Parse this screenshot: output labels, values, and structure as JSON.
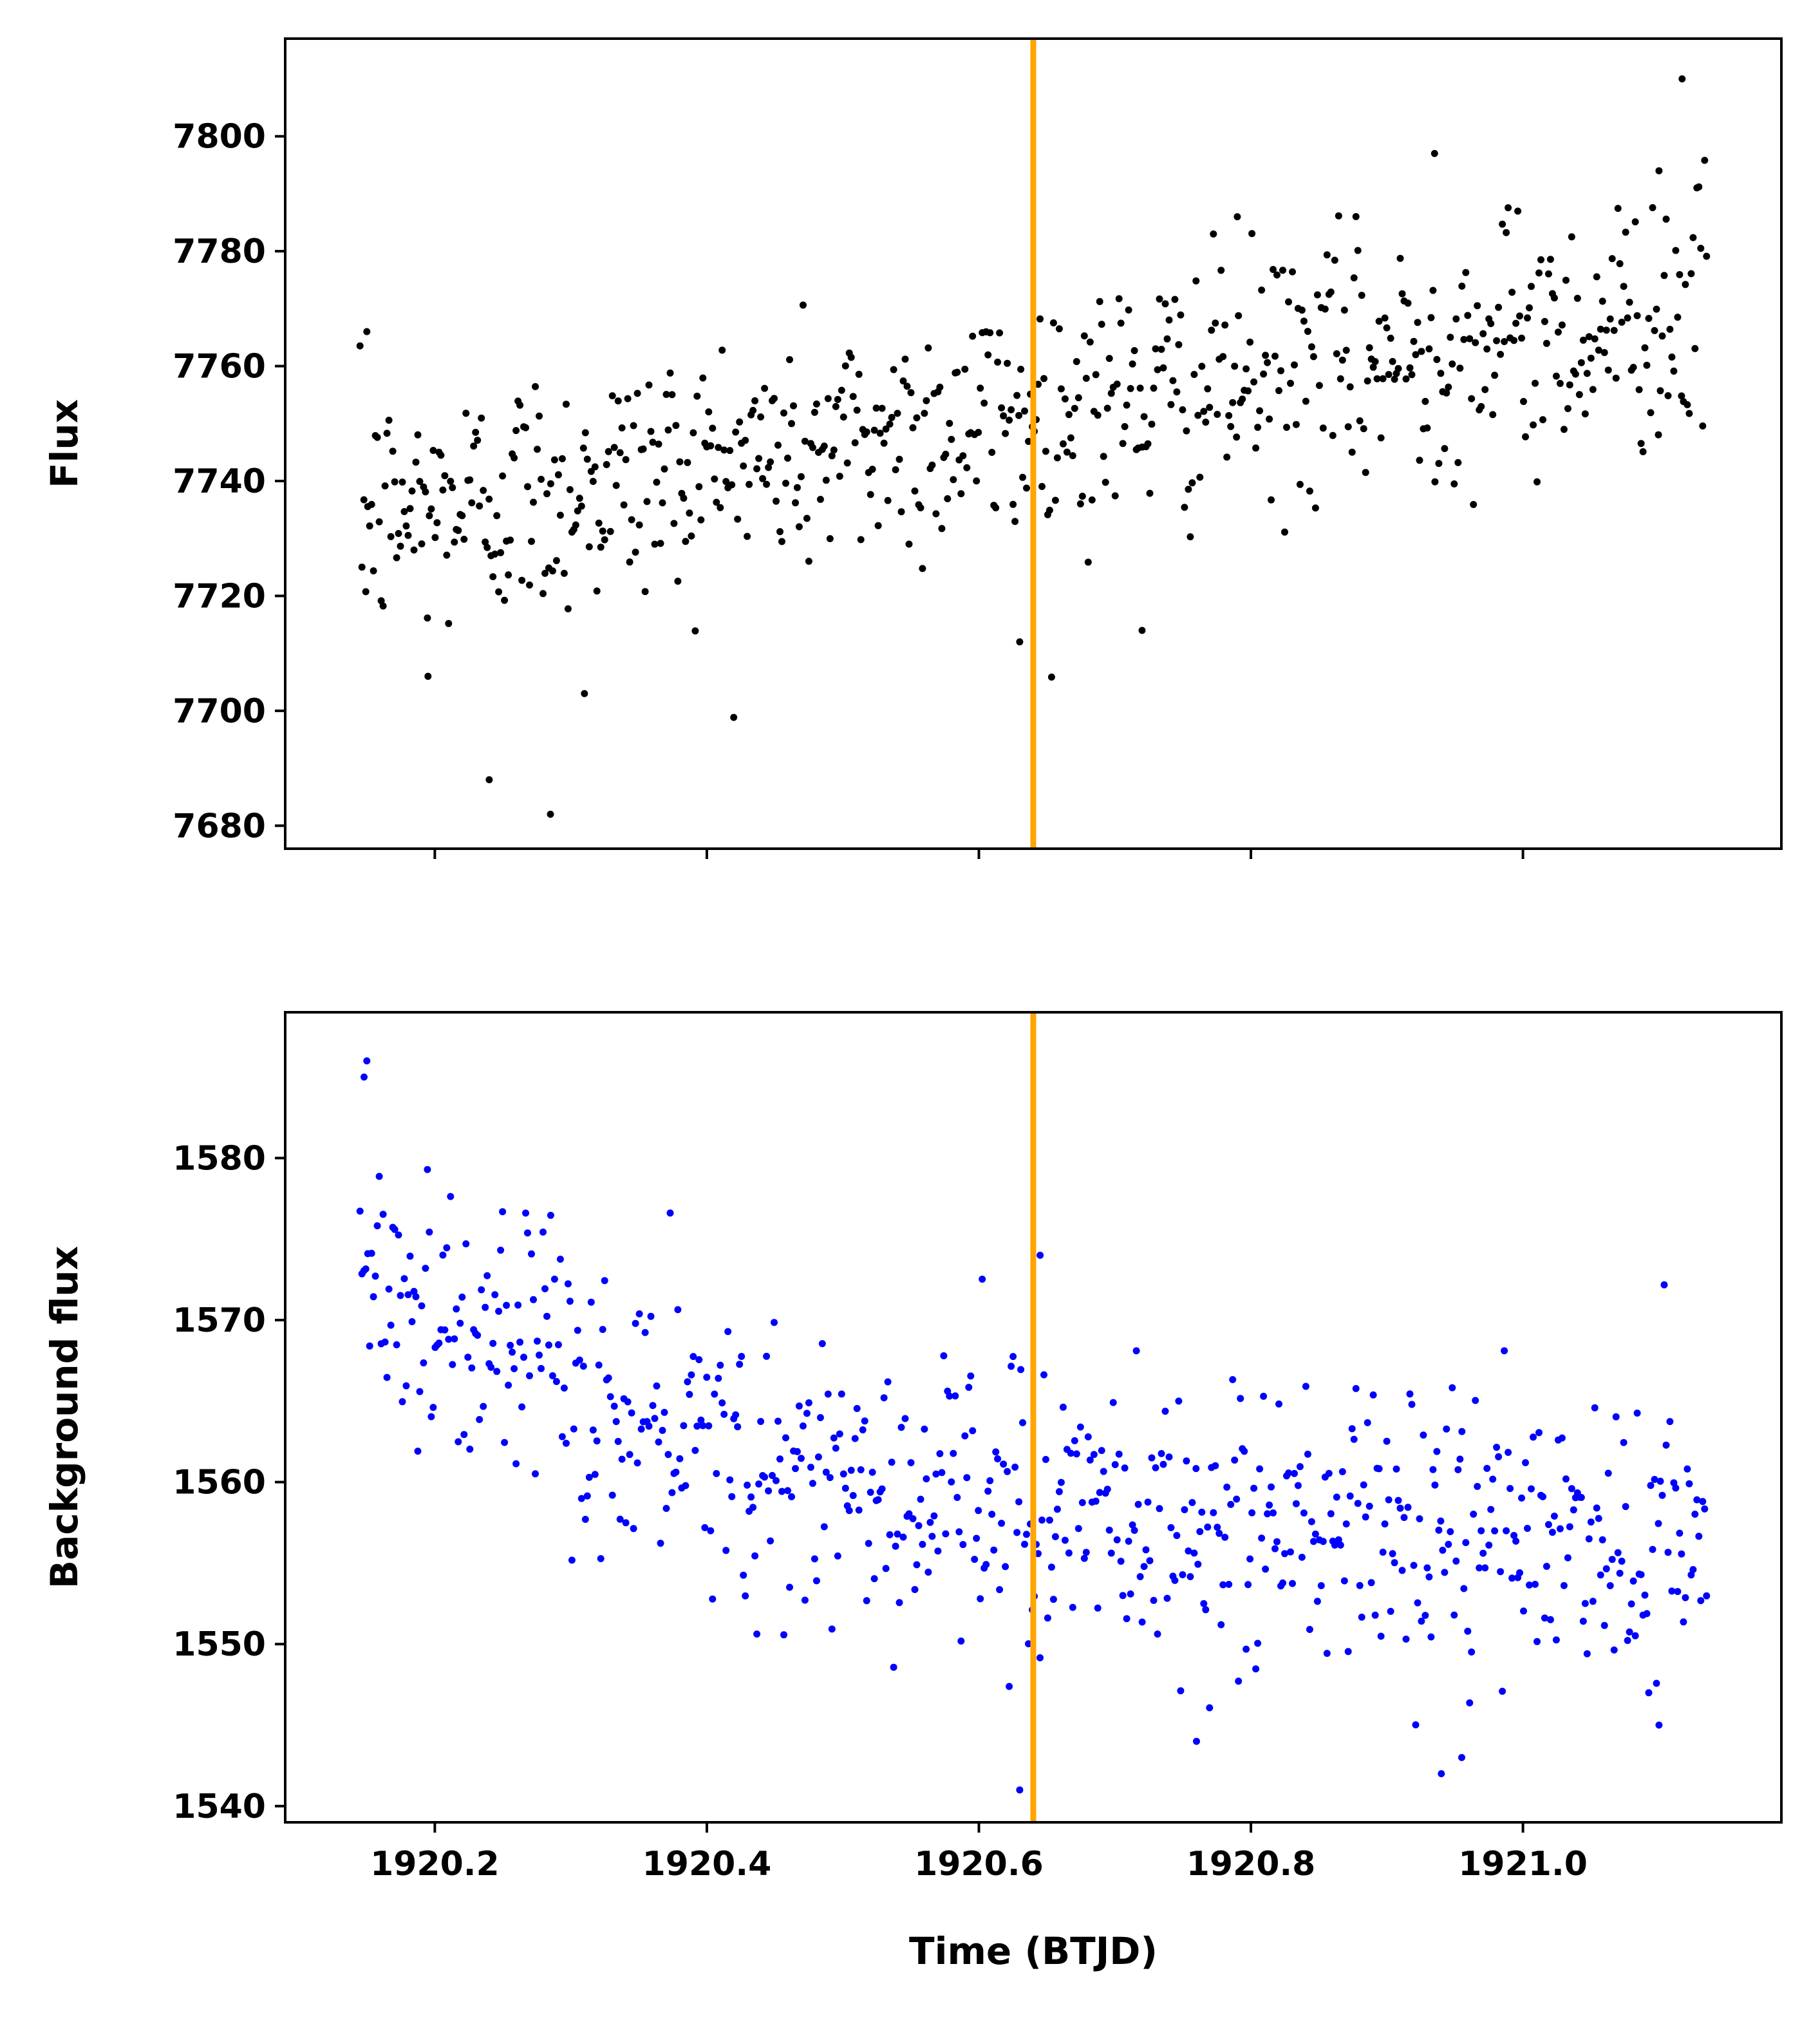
{
  "chart_data": [
    {
      "type": "scatter",
      "title": "",
      "xlabel": "",
      "ylabel": "Flux",
      "xlim": [
        1920.09,
        1921.19
      ],
      "ylim": [
        7676,
        7817
      ],
      "yticks": [
        "7680",
        "7700",
        "7720",
        "7740",
        "7760",
        "7780",
        "7800"
      ],
      "ytick_values": [
        7680,
        7700,
        7720,
        7740,
        7760,
        7780,
        7800
      ],
      "xticks": [
        1920.2,
        1920.4,
        1920.6,
        1920.8,
        1921.0
      ],
      "xtick_labels_shown": false,
      "marker_color": "#000000",
      "vline": {
        "x": 1920.64,
        "color": "#ffa500"
      },
      "grid": false,
      "trend": {
        "x_start": 1920.145,
        "x_end": 1921.135,
        "y_start": 7733,
        "y_end": 7770,
        "noise_sd": 11,
        "n_points": 700
      },
      "anchor_points": [
        {
          "x": 1920.15,
          "y": 7766
        },
        {
          "x": 1920.24,
          "y": 7688
        },
        {
          "x": 1920.285,
          "y": 7682
        },
        {
          "x": 1920.195,
          "y": 7706
        },
        {
          "x": 1920.31,
          "y": 7703
        },
        {
          "x": 1920.935,
          "y": 7797
        },
        {
          "x": 1921.117,
          "y": 7810
        },
        {
          "x": 1920.63,
          "y": 7712
        },
        {
          "x": 1920.72,
          "y": 7714
        },
        {
          "x": 1920.79,
          "y": 7786
        },
        {
          "x": 1921.1,
          "y": 7794
        }
      ]
    },
    {
      "type": "scatter",
      "title": "",
      "xlabel": "Time (BTJD)",
      "ylabel": "Background flux",
      "xlim": [
        1920.09,
        1921.19
      ],
      "ylim": [
        1539,
        1589
      ],
      "yticks": [
        "1540",
        "1550",
        "1560",
        "1570",
        "1580"
      ],
      "ytick_values": [
        1540,
        1550,
        1560,
        1570,
        1580
      ],
      "xticks": [
        "1920.2",
        "1920.4",
        "1920.6",
        "1920.8",
        "1921.0"
      ],
      "xtick_values": [
        1920.2,
        1920.4,
        1920.6,
        1920.8,
        1921.0
      ],
      "marker_color": "#0000ff",
      "vline": {
        "x": 1920.64,
        "color": "#ffa500"
      },
      "grid": false,
      "trend": {
        "x_start": 1920.145,
        "x_end": 1921.135,
        "y_start": 1574,
        "y_end": 1556,
        "noise_sd": 4.5,
        "n_points": 700
      },
      "anchor_points": [
        {
          "x": 1920.15,
          "y": 1586
        },
        {
          "x": 1920.148,
          "y": 1585
        },
        {
          "x": 1920.63,
          "y": 1541
        },
        {
          "x": 1920.94,
          "y": 1542
        },
        {
          "x": 1920.955,
          "y": 1543
        },
        {
          "x": 1920.76,
          "y": 1544
        },
        {
          "x": 1920.645,
          "y": 1574
        },
        {
          "x": 1921.1,
          "y": 1545
        }
      ]
    }
  ]
}
